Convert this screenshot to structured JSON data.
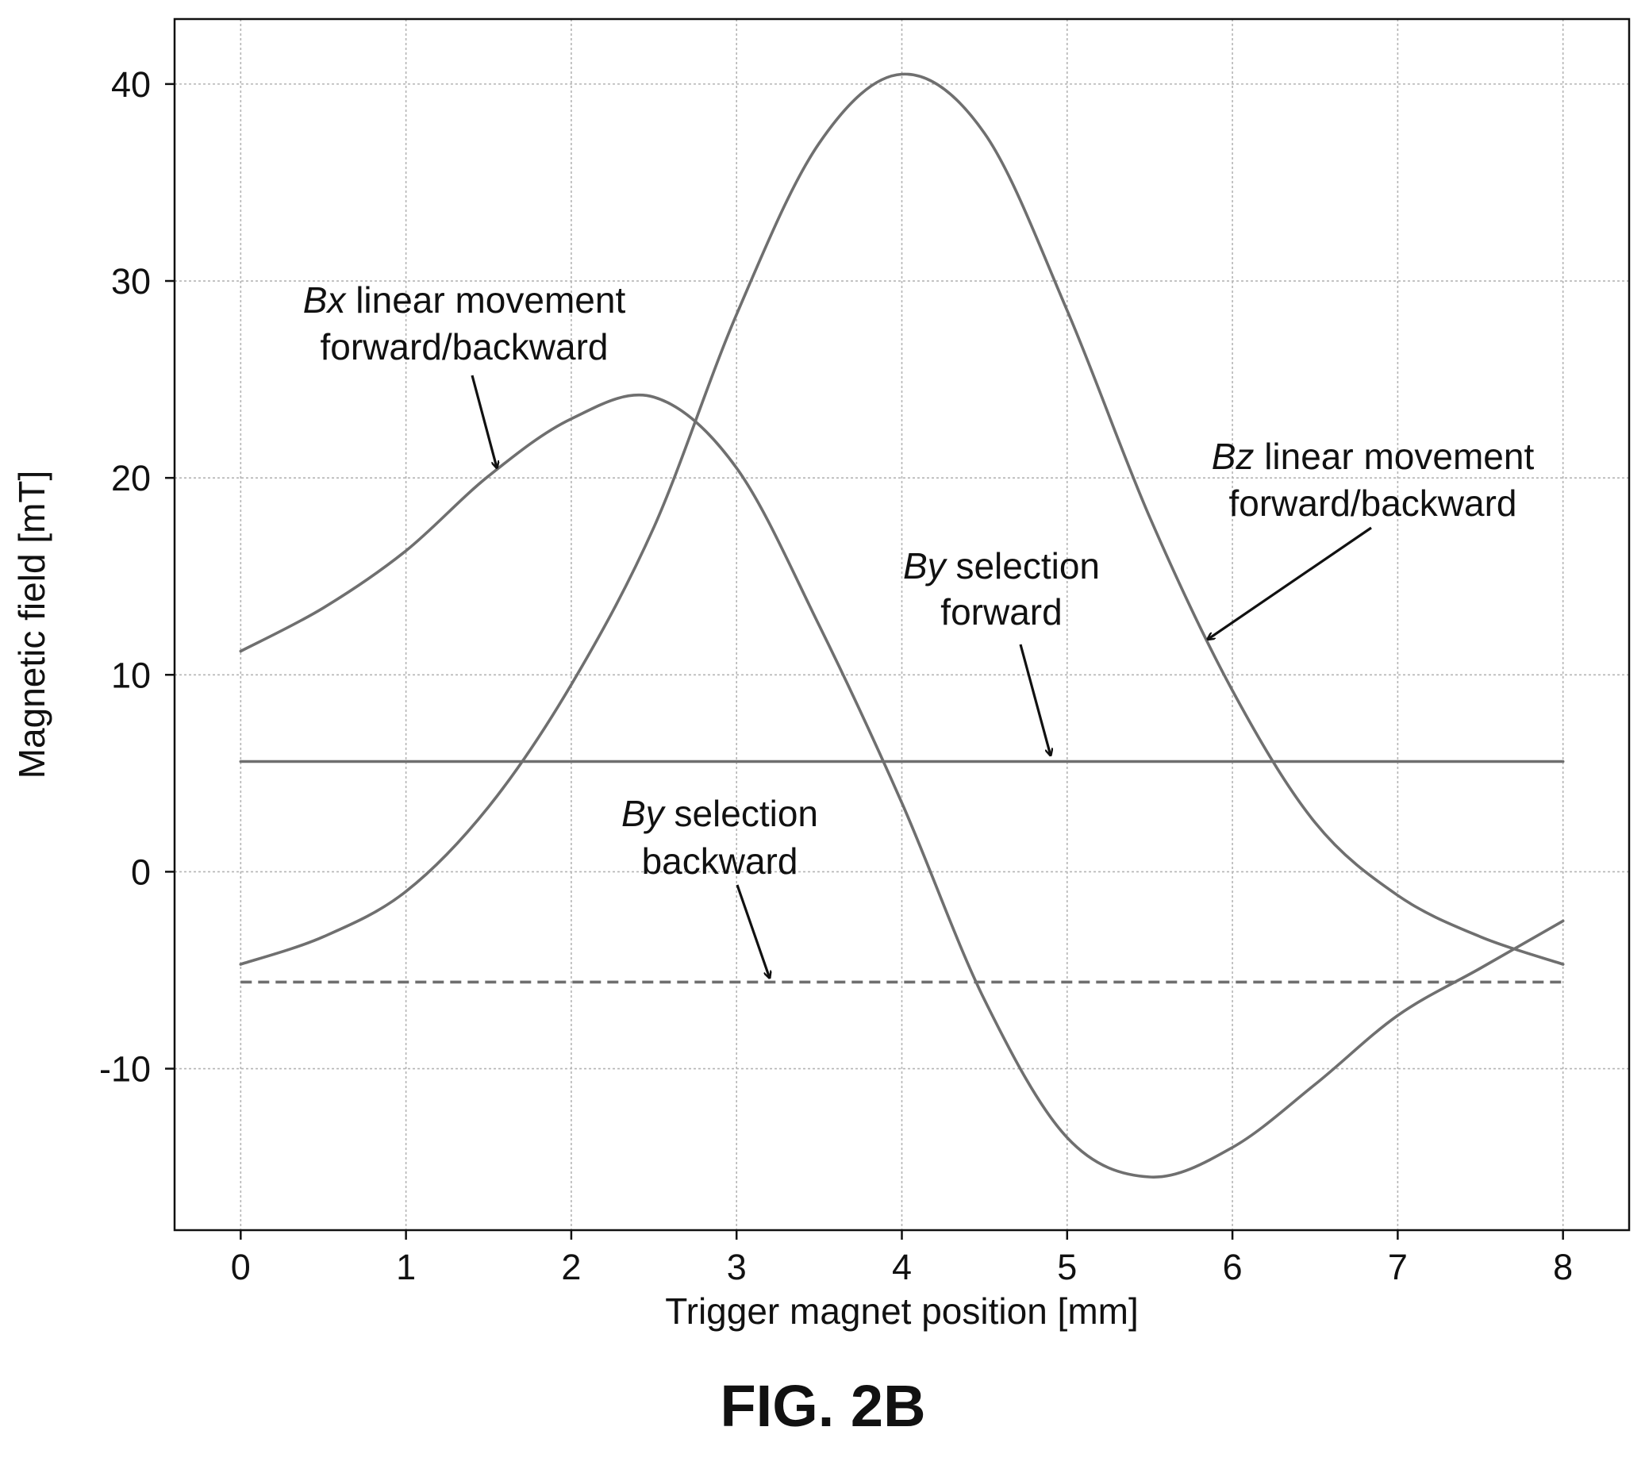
{
  "chart_data": {
    "type": "line",
    "xlabel": "Trigger magnet position [mm]",
    "ylabel": "Magnetic field [mT]",
    "xlim": [
      -0.4,
      8.4
    ],
    "ylim": [
      -18.2,
      43.3
    ],
    "xticks": [
      0,
      1,
      2,
      3,
      4,
      5,
      6,
      7,
      8
    ],
    "yticks": [
      -10,
      0,
      10,
      20,
      30,
      40
    ],
    "xtick_labels": [
      "0",
      "1",
      "2",
      "3",
      "4",
      "5",
      "6",
      "7",
      "8"
    ],
    "ytick_labels": [
      "-10",
      "0",
      "10",
      "20",
      "30",
      "40"
    ],
    "grid": true,
    "series": [
      {
        "name": "Bx linear movement forward/backward",
        "style": "solid",
        "x": [
          0,
          0.5,
          1,
          1.5,
          2,
          2.5,
          3,
          3.5,
          4,
          4.5,
          5,
          5.5,
          6,
          6.5,
          7,
          7.5,
          8
        ],
        "y": [
          11.2,
          13.4,
          16.3,
          20.1,
          23.0,
          24.1,
          20.5,
          12.5,
          3.5,
          -6.5,
          -13.5,
          -15.5,
          -14.0,
          -10.8,
          -7.3,
          -4.9,
          -2.5
        ]
      },
      {
        "name": "Bz linear movement forward/backward",
        "style": "solid",
        "x": [
          0,
          0.5,
          1,
          1.5,
          2,
          2.5,
          3,
          3.5,
          4,
          4.5,
          5,
          5.5,
          6,
          6.5,
          7,
          7.5,
          8
        ],
        "y": [
          -4.7,
          -3.3,
          -1.0,
          3.3,
          9.5,
          17.5,
          28.3,
          37.0,
          40.5,
          37.5,
          28.5,
          18.0,
          9.2,
          2.5,
          -1.2,
          -3.3,
          -4.7
        ]
      },
      {
        "name": "By selection forward",
        "style": "solid",
        "x": [
          0,
          8
        ],
        "y": [
          5.6,
          5.6
        ]
      },
      {
        "name": "By selection backward",
        "style": "dashed",
        "x": [
          0,
          8
        ],
        "y": [
          -5.6,
          -5.6
        ]
      }
    ],
    "annotations": [
      {
        "lines": [
          {
            "em": "Bx",
            "text": " linear movement"
          },
          {
            "em": "",
            "text": "forward/backward"
          }
        ],
        "points_to": [
          1.55,
          20.5
        ]
      },
      {
        "lines": [
          {
            "em": "Bz",
            "text": " linear movement"
          },
          {
            "em": "",
            "text": "forward/backward"
          }
        ],
        "points_to": [
          5.85,
          11.8
        ]
      },
      {
        "lines": [
          {
            "em": "By",
            "text": " selection"
          },
          {
            "em": "",
            "text": "forward"
          }
        ],
        "points_to": [
          4.9,
          5.9
        ]
      },
      {
        "lines": [
          {
            "em": "By",
            "text": " selection"
          },
          {
            "em": "",
            "text": "backward"
          }
        ],
        "points_to": [
          3.2,
          -5.4
        ]
      }
    ],
    "colors": {
      "line": "#6f6f6f",
      "grid": "#b5b5b5",
      "axis": "#111111",
      "arrow": "#111111",
      "text": "#111111"
    }
  },
  "figure_label": "FIG. 2B"
}
